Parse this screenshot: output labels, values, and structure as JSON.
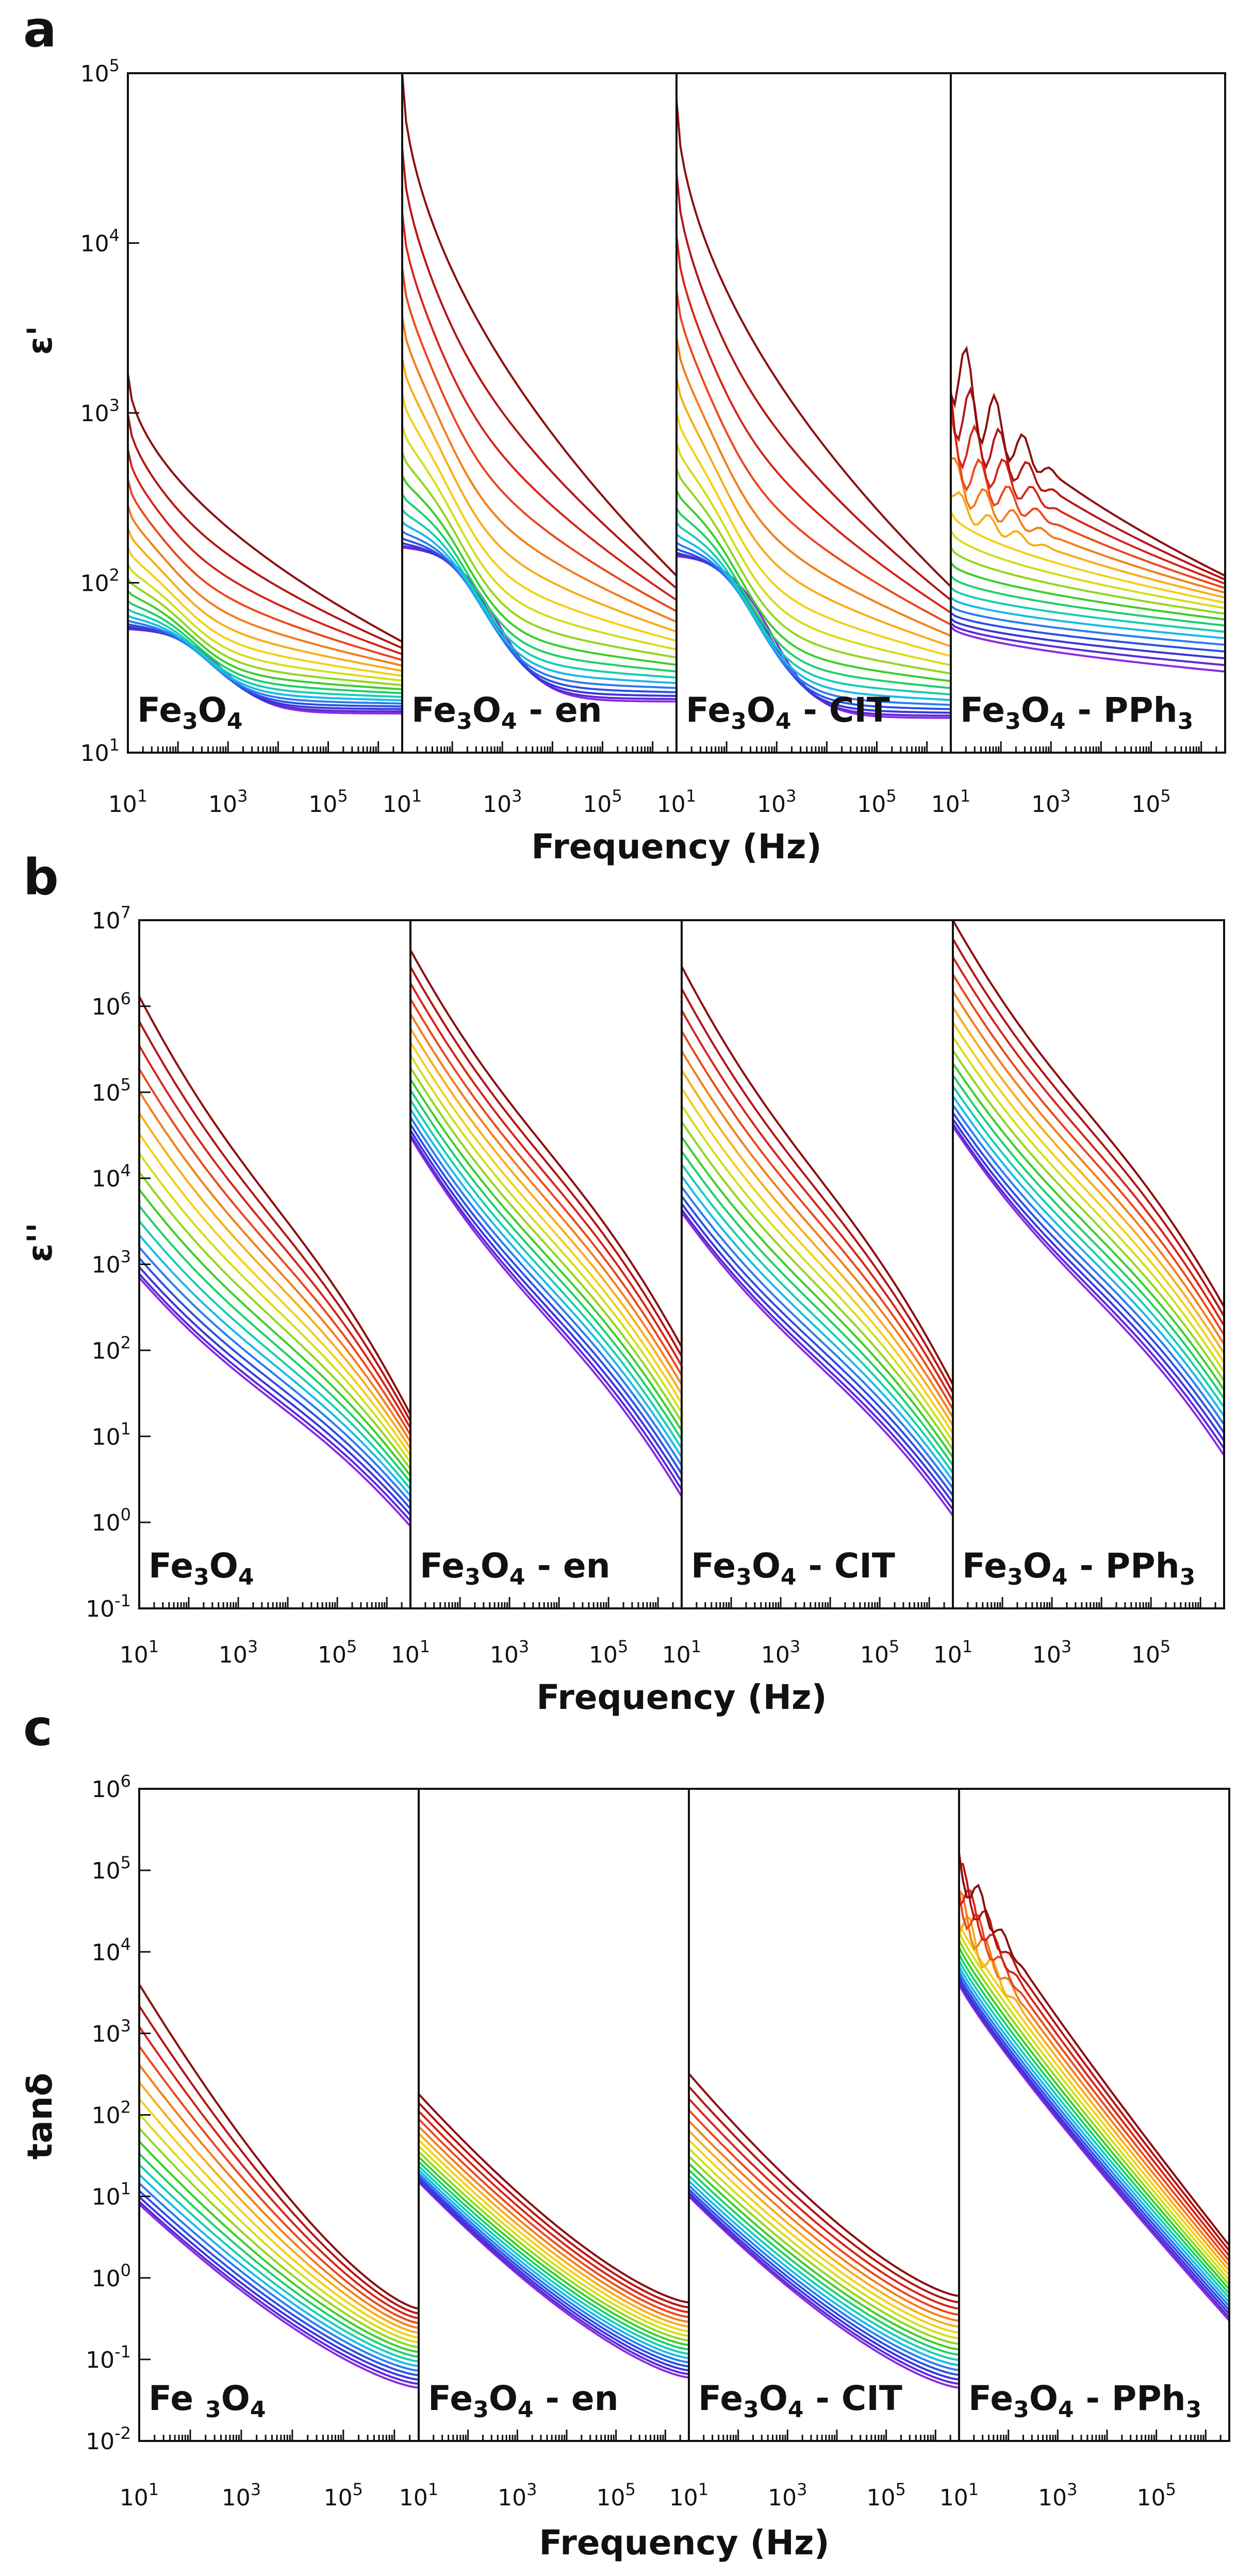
{
  "figure": {
    "x_ticks": {
      "wide": [
        {
          "base": "10",
          "exp": "1"
        },
        {
          "base": "10",
          "exp": "3"
        },
        {
          "base": "10",
          "exp": "5"
        }
      ],
      "short": [
        {
          "base": "10",
          "exp": "1"
        },
        {
          "base": "10",
          "exp": "3"
        },
        {
          "base": "10",
          "exp": "5"
        }
      ]
    }
  },
  "chart_data": [
    {
      "type": "line",
      "panel": "a",
      "ylabel": "ε'",
      "xlabel": "Frequency (Hz)",
      "xscale": "log",
      "yscale": "log",
      "xlim": [
        10,
        3000000
      ],
      "ylim": [
        10,
        100000
      ],
      "y_ticks": [
        {
          "base": "10",
          "exp": "1"
        },
        {
          "base": "10",
          "exp": "2"
        },
        {
          "base": "10",
          "exp": "3"
        },
        {
          "base": "10",
          "exp": "4"
        },
        {
          "base": "10",
          "exp": "5"
        }
      ],
      "color_ramp": [
        "#8b2be2",
        "#4a2bd6",
        "#2b3fe0",
        "#2b78ee",
        "#14c8e8",
        "#16d28a",
        "#2ecc2e",
        "#9ed91c",
        "#f0e014",
        "#f8b818",
        "#f27a1a",
        "#e8321e",
        "#c21818",
        "#8b1010"
      ],
      "subplots": [
        {
          "name": "Fe3O4",
          "label": {
            "parts": [
              {
                "t": "Fe"
              },
              {
                "t": "3",
                "sub": true
              },
              {
                "t": "O"
              },
              {
                "t": "4",
                "sub": true
              }
            ]
          },
          "low_start": [
            60,
            72
          ],
          "low_end": [
            17,
            22
          ],
          "high_start": [
            62,
            1700
          ],
          "high_end": [
            22,
            45
          ],
          "mode": "normal"
        },
        {
          "name": "Fe3O4 - en",
          "label": {
            "parts": [
              {
                "t": "Fe"
              },
              {
                "t": "3",
                "sub": true
              },
              {
                "t": "O"
              },
              {
                "t": "4",
                "sub": true
              },
              {
                "t": " - en"
              }
            ]
          },
          "low_start": [
            200,
            260
          ],
          "low_end": [
            20,
            26
          ],
          "high_start": [
            300,
            100000
          ],
          "high_end": [
            28,
            110
          ],
          "mode": "normal"
        },
        {
          "name": "Fe3O4 - CIT",
          "label": {
            "parts": [
              {
                "t": "Fe"
              },
              {
                "t": "3",
                "sub": true
              },
              {
                "t": "O"
              },
              {
                "t": "4",
                "sub": true
              },
              {
                "t": " - CIT"
              }
            ]
          },
          "low_start": [
            180,
            215
          ],
          "low_end": [
            16,
            20
          ],
          "high_start": [
            220,
            70000
          ],
          "high_end": [
            22,
            95
          ],
          "mode": "normal"
        },
        {
          "name": "Fe3O4 - PPh3",
          "label": {
            "parts": [
              {
                "t": "Fe"
              },
              {
                "t": "3",
                "sub": true
              },
              {
                "t": "O"
              },
              {
                "t": "4",
                "sub": true
              },
              {
                "t": " - PPh"
              },
              {
                "t": "3",
                "sub": true
              }
            ]
          },
          "low_start": [
            55,
            110
          ],
          "low_end": [
            30,
            55
          ],
          "high_start": [
            110,
            2400
          ],
          "high_end": [
            100,
            110
          ],
          "mode": "noisy"
        }
      ]
    },
    {
      "type": "line",
      "panel": "b",
      "ylabel": "ε''",
      "xlabel": "Frequency (Hz)",
      "xscale": "log",
      "yscale": "log",
      "xlim": [
        10,
        3000000
      ],
      "ylim": [
        0.1,
        10000000
      ],
      "y_ticks": [
        {
          "base": "10",
          "exp": "-1"
        },
        {
          "base": "10",
          "exp": "0"
        },
        {
          "base": "10",
          "exp": "1"
        },
        {
          "base": "10",
          "exp": "2"
        },
        {
          "base": "10",
          "exp": "3"
        },
        {
          "base": "10",
          "exp": "4"
        },
        {
          "base": "10",
          "exp": "5"
        },
        {
          "base": "10",
          "exp": "6"
        },
        {
          "base": "10",
          "exp": "7"
        }
      ],
      "color_ramp": [
        "#8b2be2",
        "#4a2bd6",
        "#2b3fe0",
        "#2b78ee",
        "#14c8e8",
        "#16d28a",
        "#2ecc2e",
        "#9ed91c",
        "#f0e014",
        "#f8b818",
        "#f27a1a",
        "#e8321e",
        "#c21818",
        "#8b1010"
      ],
      "subplots": [
        {
          "name": "Fe3O4",
          "label": {
            "parts": [
              {
                "t": "Fe"
              },
              {
                "t": "3",
                "sub": true
              },
              {
                "t": "O"
              },
              {
                "t": "4",
                "sub": true
              }
            ]
          },
          "low_start": [
            700,
            1000
          ],
          "low_end": [
            0.9,
            1.2
          ],
          "high_start": [
            1200000,
            1300000
          ],
          "high_end": [
            16,
            18
          ],
          "mode": "power"
        },
        {
          "name": "Fe3O4 - en",
          "label": {
            "parts": [
              {
                "t": "Fe"
              },
              {
                "t": "3",
                "sub": true
              },
              {
                "t": "O"
              },
              {
                "t": "4",
                "sub": true
              },
              {
                "t": " - en"
              }
            ]
          },
          "low_start": [
            30000,
            40000
          ],
          "low_end": [
            2,
            2.5
          ],
          "high_start": [
            3500000,
            4500000
          ],
          "high_end": [
            90,
            110
          ],
          "mode": "power"
        },
        {
          "name": "Fe3O4 - CIT",
          "label": {
            "parts": [
              {
                "t": "Fe"
              },
              {
                "t": "3",
                "sub": true
              },
              {
                "t": "O"
              },
              {
                "t": "4",
                "sub": true
              },
              {
                "t": " - CIT"
              }
            ]
          },
          "low_start": [
            4000,
            5000
          ],
          "low_end": [
            1.2,
            1.5
          ],
          "high_start": [
            2500000,
            2900000
          ],
          "high_end": [
            35,
            40
          ],
          "mode": "power"
        },
        {
          "name": "Fe3O4 - PPh3",
          "label": {
            "parts": [
              {
                "t": "Fe"
              },
              {
                "t": "3",
                "sub": true
              },
              {
                "t": "O"
              },
              {
                "t": "4",
                "sub": true
              },
              {
                "t": " - PPh"
              },
              {
                "t": "3",
                "sub": true
              }
            ]
          },
          "low_start": [
            40000,
            50000
          ],
          "low_end": [
            6,
            8
          ],
          "high_start": [
            8000000,
            10000000
          ],
          "high_end": [
            250,
            320
          ],
          "mode": "power"
        }
      ]
    },
    {
      "type": "line",
      "panel": "c",
      "ylabel": "tanδ",
      "xlabel": "Frequency (Hz)",
      "xscale": "log",
      "yscale": "log",
      "xlim": [
        10,
        3000000
      ],
      "ylim": [
        0.01,
        1000000
      ],
      "y_ticks": [
        {
          "base": "10",
          "exp": "-2"
        },
        {
          "base": "10",
          "exp": "-1"
        },
        {
          "base": "10",
          "exp": "0"
        },
        {
          "base": "10",
          "exp": "1"
        },
        {
          "base": "10",
          "exp": "2"
        },
        {
          "base": "10",
          "exp": "3"
        },
        {
          "base": "10",
          "exp": "4"
        },
        {
          "base": "10",
          "exp": "5"
        },
        {
          "base": "10",
          "exp": "6"
        }
      ],
      "color_ramp": [
        "#8b2be2",
        "#4a2bd6",
        "#2b3fe0",
        "#2b78ee",
        "#14c8e8",
        "#16d28a",
        "#2ecc2e",
        "#9ed91c",
        "#f0e014",
        "#f8b818",
        "#f27a1a",
        "#e8321e",
        "#c21818",
        "#8b1010"
      ],
      "subplots": [
        {
          "name": "Fe3O4",
          "label": {
            "parts": [
              {
                "t": "Fe"
              },
              {
                "t": " "
              },
              {
                "t": "3",
                "sub": true
              },
              {
                "t": "O"
              },
              {
                "t": "4",
                "sub": true
              }
            ]
          },
          "low_start": [
            8,
            12
          ],
          "low_end": [
            0.045,
            0.06
          ],
          "high_start": [
            1000,
            4000
          ],
          "high_end": [
            0.35,
            0.42
          ],
          "mode": "tan"
        },
        {
          "name": "Fe3O4 - en",
          "label": {
            "parts": [
              {
                "t": "Fe"
              },
              {
                "t": "3",
                "sub": true
              },
              {
                "t": "O"
              },
              {
                "t": "4",
                "sub": true
              },
              {
                "t": " - en"
              }
            ]
          },
          "low_start": [
            15,
            20
          ],
          "low_end": [
            0.06,
            0.08
          ],
          "high_start": [
            80,
            180
          ],
          "high_end": [
            0.35,
            0.5
          ],
          "mode": "tan"
        },
        {
          "name": "Fe3O4 - CIT",
          "label": {
            "parts": [
              {
                "t": "Fe"
              },
              {
                "t": "3",
                "sub": true
              },
              {
                "t": "O"
              },
              {
                "t": "4",
                "sub": true
              },
              {
                "t": " - CIT"
              }
            ]
          },
          "low_start": [
            10,
            14
          ],
          "low_end": [
            0.045,
            0.06
          ],
          "high_start": [
            80,
            320
          ],
          "high_end": [
            0.35,
            0.6
          ],
          "mode": "tan"
        },
        {
          "name": "Fe3O4 - PPh3",
          "label": {
            "parts": [
              {
                "t": "Fe"
              },
              {
                "t": "3",
                "sub": true
              },
              {
                "t": "O"
              },
              {
                "t": "4",
                "sub": true
              },
              {
                "t": " - PPh"
              },
              {
                "t": "3",
                "sub": true
              }
            ]
          },
          "low_start": [
            4000,
            6000
          ],
          "low_end": [
            0.3,
            0.4
          ],
          "high_start": [
            60000,
            120000
          ],
          "high_end": [
            1.5,
            2.5
          ],
          "mode": "tanp"
        }
      ]
    }
  ]
}
